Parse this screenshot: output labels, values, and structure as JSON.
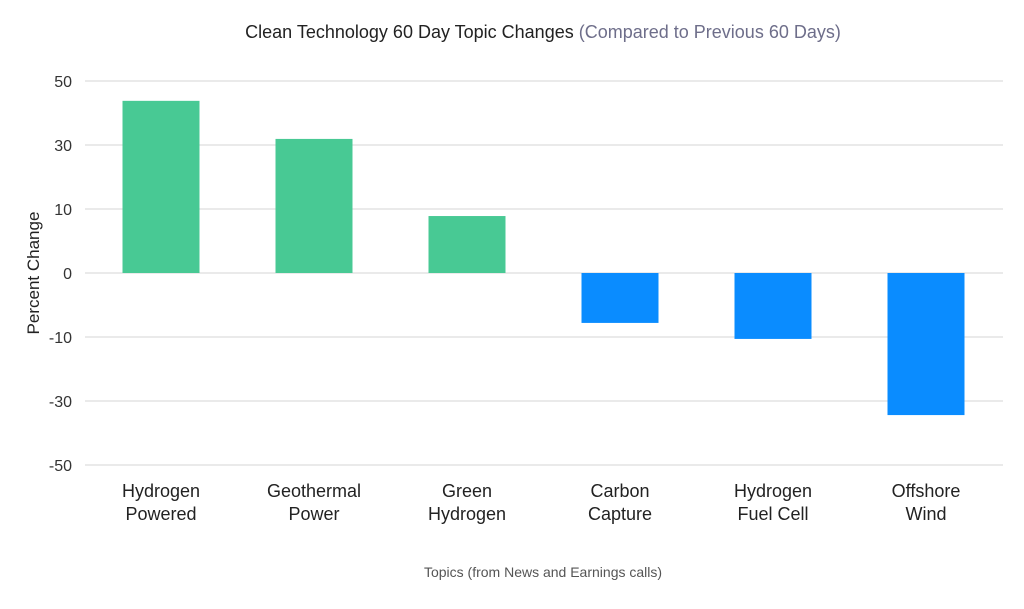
{
  "chart_data": {
    "type": "bar",
    "title": "Clean Technology 60 Day Topic Changes",
    "subtitle": "(Compared to Previous 60 Days)",
    "xlabel": "Topics (from News and Earnings calls)",
    "ylabel": "Percent Change",
    "yticks": [
      50,
      30,
      10,
      0,
      -10,
      -30,
      -50
    ],
    "ylim": [
      -50,
      50
    ],
    "grid": true,
    "categories": [
      [
        "Hydrogen",
        "Powered"
      ],
      [
        "Geothermal",
        "Power"
      ],
      [
        "Green",
        "Hydrogen"
      ],
      [
        "Carbon",
        "Capture"
      ],
      [
        "Hydrogen",
        "Fuel Cell"
      ],
      [
        "Offshore",
        "Wind"
      ]
    ],
    "values": [
      43.8,
      31.9,
      8.9,
      -7.8,
      -10.6,
      -34.4
    ],
    "colors": {
      "positive": "#48c994",
      "negative": "#0a8cff"
    }
  }
}
